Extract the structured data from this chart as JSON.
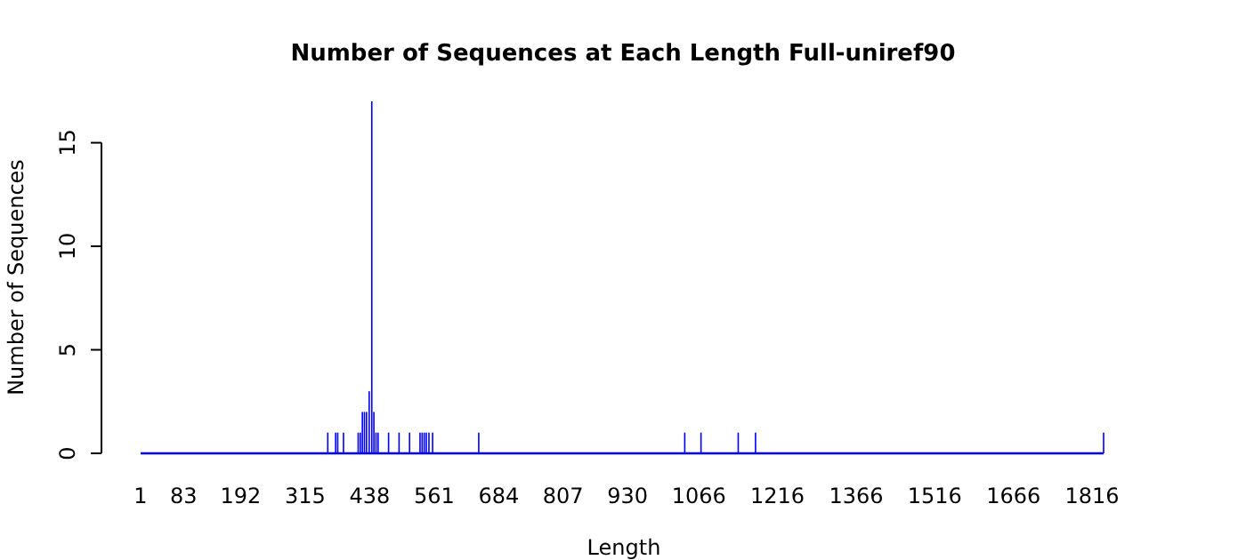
{
  "chart_data": {
    "type": "bar",
    "title": "Number of Sequences at Each Length  Full-uniref90",
    "xlabel": "Length",
    "ylabel": "Number of Sequences",
    "x": [
      358,
      373,
      377,
      388,
      416,
      420,
      424,
      428,
      432,
      437,
      442,
      446,
      450,
      454,
      474,
      494,
      514,
      534,
      538,
      542,
      546,
      551,
      558,
      646,
      1039,
      1070,
      1141,
      1174,
      1838
    ],
    "values": [
      1,
      1,
      1,
      1,
      1,
      1,
      2,
      2,
      2,
      3,
      17,
      2,
      1,
      1,
      1,
      1,
      1,
      1,
      1,
      1,
      1,
      1,
      1,
      1,
      1,
      1,
      1,
      1,
      1
    ],
    "color": "#0000ff",
    "xlim": [
      1,
      1838
    ],
    "xticks": [
      1,
      83,
      192,
      315,
      438,
      561,
      684,
      807,
      930,
      1066,
      1216,
      1366,
      1516,
      1666,
      1816
    ],
    "ylim": [
      0,
      17
    ],
    "yticks": [
      0,
      5,
      10,
      15
    ],
    "grid": false
  }
}
